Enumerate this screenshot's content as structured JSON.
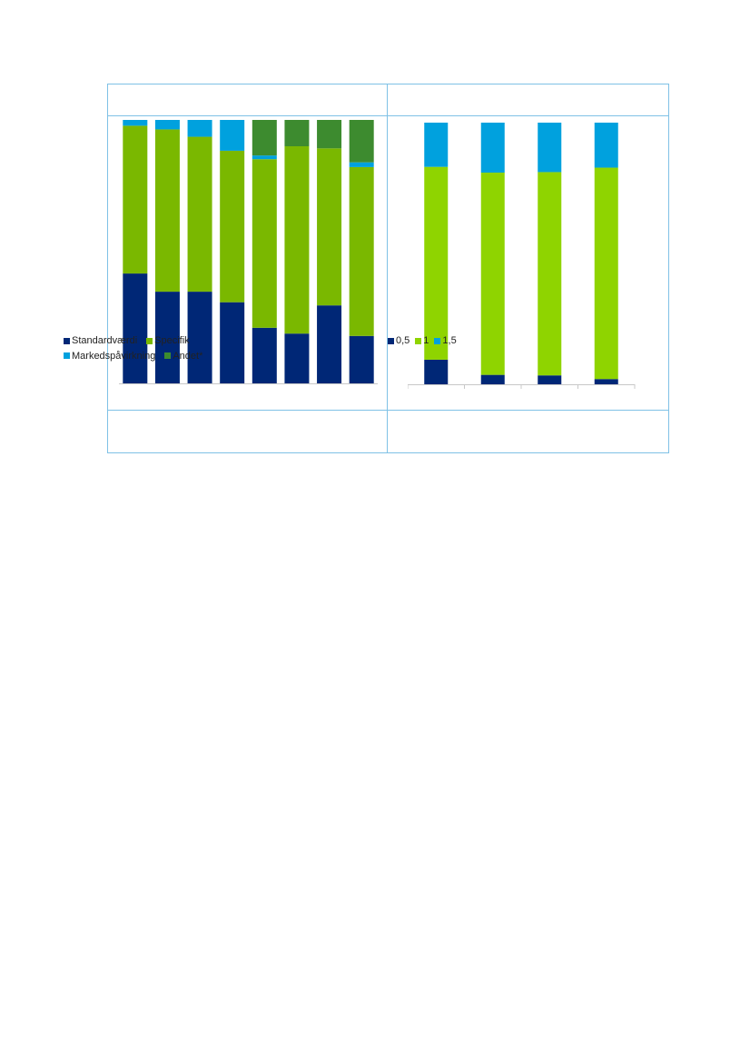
{
  "chart_data": [
    {
      "type": "bar",
      "stacked": true,
      "title": "",
      "xlabel": "",
      "ylabel": "",
      "ylim": [
        0,
        100
      ],
      "categories": [
        "",
        "",
        "",
        "",
        "",
        "",
        "",
        ""
      ],
      "series": [
        {
          "name": "Standardværdi",
          "color": "#002776",
          "values": [
            41.7,
            34.8,
            34.8,
            30.8,
            21.1,
            18.9,
            29.6,
            18.0
          ]
        },
        {
          "name": "Specifik",
          "color": "#7ab800",
          "values": [
            56.1,
            61.6,
            58.8,
            57.5,
            64.0,
            71.1,
            59.6,
            64.1
          ]
        },
        {
          "name": "Markedspåvirkning",
          "color": "#00a1de",
          "values": [
            2.2,
            3.6,
            6.4,
            11.7,
            1.4,
            0.0,
            0.0,
            1.8
          ]
        },
        {
          "name": "Andet*",
          "color": "#3d8b2f",
          "values": [
            0.0,
            0.0,
            0.0,
            0.0,
            13.5,
            10.0,
            10.8,
            16.1
          ]
        }
      ],
      "legend_position": "bottom"
    },
    {
      "type": "bar",
      "stacked": true,
      "title": "",
      "xlabel": "",
      "ylabel": "",
      "ylim": [
        0,
        100
      ],
      "categories": [
        "",
        "",
        "",
        ""
      ],
      "series": [
        {
          "name": "0,5",
          "color": "#002776",
          "values": [
            9.4,
            3.6,
            3.4,
            2.0
          ]
        },
        {
          "name": "1",
          "color": "#8fd400",
          "values": [
            73.7,
            77.3,
            77.7,
            80.8
          ]
        },
        {
          "name": "1,5",
          "color": "#00a1de",
          "values": [
            16.9,
            19.1,
            18.9,
            17.2
          ]
        }
      ],
      "legend_position": "bottom"
    }
  ]
}
